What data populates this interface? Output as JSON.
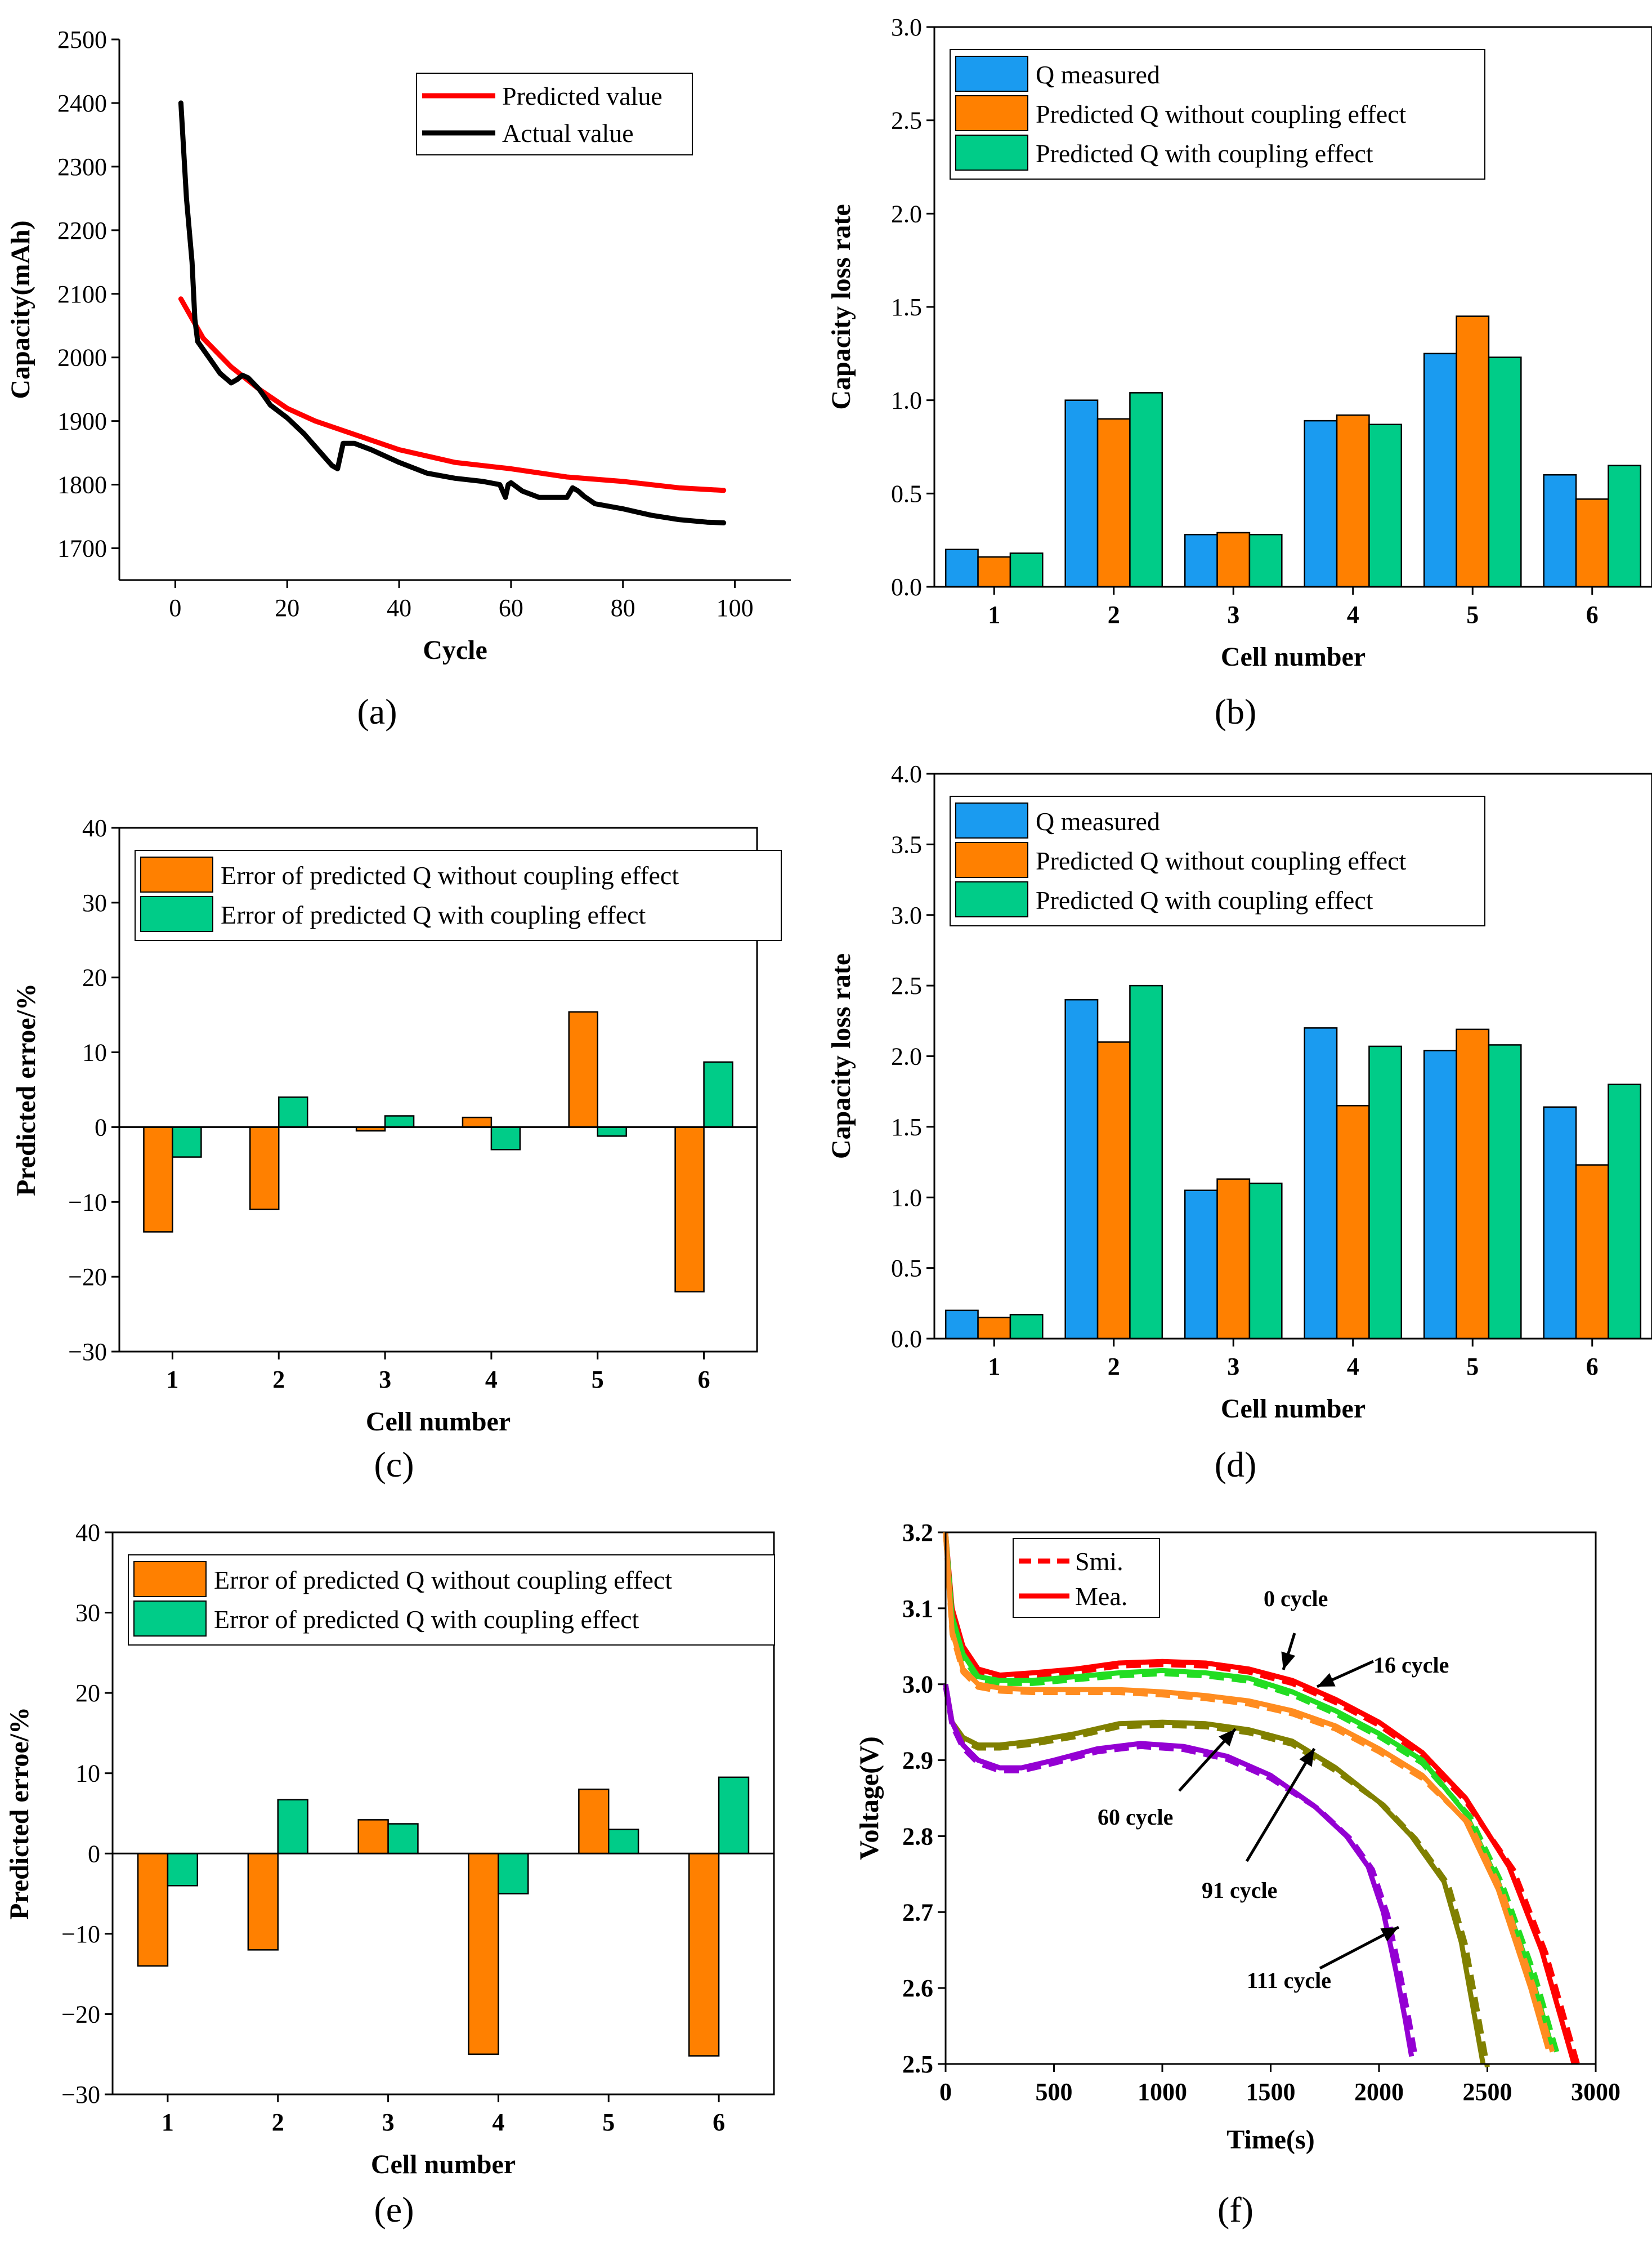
{
  "colors": {
    "blue": "#1A9BF0",
    "orange": "#FF8000",
    "green": "#00CC88",
    "red": "#FF0000",
    "black": "#000000",
    "lime": "#22DD22",
    "amber": "#FF8C20",
    "olive": "#808000",
    "purple": "#9400D3"
  },
  "panel_labels": [
    "(a)",
    "(b)",
    "(c)",
    "(d)",
    "(e)",
    "(f)"
  ],
  "chart_data": [
    {
      "id": "a",
      "type": "line",
      "xlabel": "Cycle",
      "ylabel": "Capacity(mAh)",
      "xlim": [
        -10,
        110
      ],
      "ylim": [
        1650,
        2500
      ],
      "xticks": [
        0,
        20,
        40,
        60,
        80,
        100
      ],
      "yticks": [
        1700,
        1800,
        1900,
        2000,
        2100,
        2200,
        2300,
        2400,
        2500
      ],
      "legend": "top-right",
      "series": [
        {
          "name": "Predicted value",
          "color": "#FF0000",
          "x": [
            1,
            5,
            10,
            15,
            20,
            25,
            30,
            40,
            50,
            60,
            70,
            80,
            90,
            98
          ],
          "y": [
            2092,
            2030,
            1985,
            1950,
            1920,
            1900,
            1885,
            1855,
            1835,
            1825,
            1812,
            1805,
            1795,
            1791
          ]
        },
        {
          "name": "Actual value",
          "color": "#000000",
          "x": [
            1,
            2,
            3,
            3.5,
            4,
            6,
            8,
            10,
            11,
            12,
            13,
            15,
            17,
            20,
            23,
            26,
            28,
            29,
            29.5,
            30,
            32,
            35,
            40,
            45,
            50,
            55,
            58,
            59,
            59.5,
            60,
            62,
            65,
            70,
            71,
            72,
            73,
            75,
            80,
            85,
            90,
            95,
            98
          ],
          "y": [
            2400,
            2250,
            2150,
            2060,
            2025,
            2000,
            1975,
            1960,
            1965,
            1972,
            1968,
            1950,
            1925,
            1905,
            1880,
            1850,
            1830,
            1825,
            1845,
            1865,
            1865,
            1855,
            1835,
            1818,
            1810,
            1805,
            1800,
            1780,
            1800,
            1803,
            1790,
            1780,
            1780,
            1795,
            1790,
            1782,
            1770,
            1762,
            1752,
            1745,
            1741,
            1740
          ]
        }
      ]
    },
    {
      "id": "b",
      "type": "bar",
      "xlabel": "Cell number",
      "ylabel": "Capacity loss rate",
      "categories": [
        "1",
        "2",
        "3",
        "4",
        "5",
        "6"
      ],
      "ylim": [
        0,
        3.0
      ],
      "yticks": [
        "0.0",
        "0.5",
        "1.0",
        "1.5",
        "2.0",
        "2.5",
        "3.0"
      ],
      "legend": "top-left",
      "series": [
        {
          "name": "Q measured",
          "color": "#1A9BF0",
          "values": [
            0.2,
            1.0,
            0.28,
            0.89,
            1.25,
            0.6
          ]
        },
        {
          "name": "Predicted Q without coupling effect",
          "color": "#FF8000",
          "values": [
            0.16,
            0.9,
            0.29,
            0.92,
            1.45,
            0.47
          ]
        },
        {
          "name": "Predicted Q with coupling effect",
          "color": "#00CC88",
          "values": [
            0.18,
            1.04,
            0.28,
            0.87,
            1.23,
            0.65
          ]
        }
      ]
    },
    {
      "id": "c",
      "type": "bar",
      "xlabel": "Cell number",
      "ylabel": "Predicted erroe/%",
      "categories": [
        "1",
        "2",
        "3",
        "4",
        "5",
        "6"
      ],
      "ylim": [
        -30,
        40
      ],
      "yticks": [
        "−30",
        "−20",
        "−10",
        "0",
        "10",
        "20",
        "30",
        "40"
      ],
      "legend": "top-left",
      "series": [
        {
          "name": "Error of predicted Q without coupling effect",
          "color": "#FF8000",
          "values": [
            -14,
            -11,
            -0.5,
            1.3,
            15.4,
            -22
          ]
        },
        {
          "name": "Error of predicted Q with coupling effect",
          "color": "#00CC88",
          "values": [
            -4,
            4,
            1.5,
            -3,
            -1.2,
            8.7
          ]
        }
      ]
    },
    {
      "id": "d",
      "type": "bar",
      "xlabel": "Cell number",
      "ylabel": "Capacity loss rate",
      "categories": [
        "1",
        "2",
        "3",
        "4",
        "5",
        "6"
      ],
      "ylim": [
        0,
        4.0
      ],
      "yticks": [
        "0.0",
        "0.5",
        "1.0",
        "1.5",
        "2.0",
        "2.5",
        "3.0",
        "3.5",
        "4.0"
      ],
      "legend": "top-left",
      "series": [
        {
          "name": "Q measured",
          "color": "#1A9BF0",
          "values": [
            0.2,
            2.4,
            1.05,
            2.2,
            2.04,
            1.64
          ]
        },
        {
          "name": "Predicted Q without coupling effect",
          "color": "#FF8000",
          "values": [
            0.15,
            2.1,
            1.13,
            1.65,
            2.19,
            1.23
          ]
        },
        {
          "name": "Predicted Q with coupling effect",
          "color": "#00CC88",
          "values": [
            0.17,
            2.5,
            1.1,
            2.07,
            2.08,
            1.8
          ]
        }
      ]
    },
    {
      "id": "e",
      "type": "bar",
      "xlabel": "Cell number",
      "ylabel": "Predicted erroe/%",
      "categories": [
        "1",
        "2",
        "3",
        "4",
        "5",
        "6"
      ],
      "ylim": [
        -30,
        40
      ],
      "yticks": [
        "−30",
        "−20",
        "−10",
        "0",
        "10",
        "20",
        "30",
        "40"
      ],
      "legend": "top-left",
      "series": [
        {
          "name": "Error of predicted Q without coupling effect",
          "color": "#FF8000",
          "values": [
            -14,
            -12,
            4.2,
            -25,
            8,
            -25.2
          ]
        },
        {
          "name": "Error of predicted Q with coupling effect",
          "color": "#00CC88",
          "values": [
            -4,
            6.7,
            3.7,
            -5,
            3,
            9.5
          ]
        }
      ]
    },
    {
      "id": "f",
      "type": "line",
      "xlabel": "Time(s)",
      "ylabel": "Voltage(V)",
      "xlim": [
        0,
        3000
      ],
      "ylim": [
        2.5,
        3.2
      ],
      "xticks": [
        "0",
        "500",
        "1000",
        "1500",
        "2000",
        "2500",
        "3000"
      ],
      "yticks": [
        "2.5",
        "2.6",
        "2.7",
        "2.8",
        "2.9",
        "3.0",
        "3.1",
        "3.2"
      ],
      "legend": [
        {
          "name": "Smi.",
          "style": "dashed",
          "color": "#FF0000"
        },
        {
          "name": "Mea.",
          "style": "solid",
          "color": "#FF0000"
        }
      ],
      "annotations": [
        "0 cycle",
        "16 cycle",
        "60 cycle",
        "91 cycle",
        "111 cycle"
      ],
      "series": [
        {
          "name": "0 cycle",
          "color": "#FF0000",
          "x": [
            0,
            30,
            80,
            150,
            250,
            400,
            600,
            800,
            1000,
            1200,
            1400,
            1600,
            1800,
            2000,
            2200,
            2400,
            2600,
            2750,
            2900
          ],
          "y": [
            3.2,
            3.1,
            3.05,
            3.02,
            3.012,
            3.015,
            3.02,
            3.028,
            3.03,
            3.028,
            3.02,
            3.005,
            2.98,
            2.95,
            2.91,
            2.85,
            2.76,
            2.65,
            2.5
          ]
        },
        {
          "name": "16 cycle",
          "color": "#22DD22",
          "x": [
            0,
            30,
            80,
            150,
            250,
            400,
            600,
            800,
            1000,
            1200,
            1400,
            1600,
            1800,
            2000,
            2200,
            2400,
            2550,
            2700,
            2800
          ],
          "y": [
            3.2,
            3.09,
            3.04,
            3.01,
            3.005,
            3.005,
            3.01,
            3.015,
            3.018,
            3.015,
            3.008,
            2.99,
            2.965,
            2.935,
            2.9,
            2.83,
            2.74,
            2.62,
            2.52
          ]
        },
        {
          "name": "60 cycle",
          "color": "#FF8C20",
          "x": [
            0,
            30,
            80,
            150,
            250,
            400,
            600,
            800,
            1000,
            1200,
            1400,
            1600,
            1800,
            2000,
            2200,
            2400,
            2550,
            2700,
            2780
          ],
          "y": [
            3.2,
            3.07,
            3.02,
            3.0,
            2.995,
            2.993,
            2.993,
            2.993,
            2.99,
            2.985,
            2.978,
            2.965,
            2.945,
            2.915,
            2.88,
            2.82,
            2.73,
            2.6,
            2.52
          ]
        },
        {
          "name": "91 cycle",
          "color": "#808000",
          "x": [
            0,
            30,
            80,
            150,
            250,
            400,
            600,
            800,
            1000,
            1200,
            1400,
            1600,
            1800,
            2000,
            2150,
            2300,
            2380,
            2430,
            2480
          ],
          "y": [
            3.0,
            2.95,
            2.93,
            2.92,
            2.92,
            2.925,
            2.935,
            2.948,
            2.95,
            2.948,
            2.94,
            2.925,
            2.89,
            2.845,
            2.8,
            2.74,
            2.66,
            2.58,
            2.5
          ]
        },
        {
          "name": "111 cycle",
          "color": "#9400D3",
          "x": [
            0,
            30,
            80,
            150,
            250,
            350,
            500,
            700,
            900,
            1100,
            1300,
            1500,
            1700,
            1850,
            1950,
            2020,
            2080,
            2120,
            2150
          ],
          "y": [
            3.0,
            2.95,
            2.92,
            2.9,
            2.89,
            2.89,
            2.9,
            2.915,
            2.922,
            2.918,
            2.905,
            2.88,
            2.84,
            2.8,
            2.76,
            2.7,
            2.62,
            2.56,
            2.51
          ]
        }
      ]
    }
  ]
}
